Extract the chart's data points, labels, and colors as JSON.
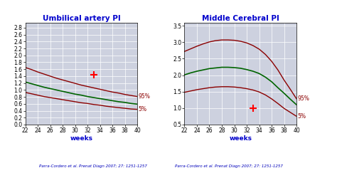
{
  "chart1": {
    "title": "Umbilical artery PI",
    "xlabel": "weeks",
    "citation": "Parra-Cordero et al. Prenat Diagn 2007; 27: 1251-1257",
    "ylim": [
      0.0,
      2.95
    ],
    "yticks": [
      0.0,
      0.2,
      0.4,
      0.6,
      0.8,
      1.0,
      1.2,
      1.4,
      1.6,
      1.8,
      2.0,
      2.2,
      2.4,
      2.6,
      2.8
    ],
    "xticks": [
      22,
      24,
      26,
      28,
      30,
      32,
      34,
      36,
      38,
      40
    ],
    "weeks": [
      22,
      23,
      24,
      25,
      26,
      27,
      28,
      29,
      30,
      31,
      32,
      33,
      34,
      35,
      36,
      37,
      38,
      39,
      40
    ],
    "p95": [
      1.65,
      1.59,
      1.52,
      1.46,
      1.4,
      1.34,
      1.29,
      1.24,
      1.19,
      1.14,
      1.1,
      1.06,
      1.02,
      0.98,
      0.94,
      0.91,
      0.87,
      0.84,
      0.81
    ],
    "p50": [
      1.23,
      1.18,
      1.13,
      1.08,
      1.04,
      1.0,
      0.96,
      0.92,
      0.88,
      0.85,
      0.81,
      0.78,
      0.75,
      0.72,
      0.69,
      0.66,
      0.64,
      0.61,
      0.59
    ],
    "p5": [
      0.93,
      0.89,
      0.85,
      0.81,
      0.78,
      0.75,
      0.72,
      0.69,
      0.66,
      0.63,
      0.61,
      0.58,
      0.56,
      0.53,
      0.51,
      0.49,
      0.47,
      0.45,
      0.44
    ],
    "label_95": "95%",
    "label_5": "5%",
    "cross_x": 33.0,
    "cross_y": 1.43,
    "cross_color": "#ff0000"
  },
  "chart2": {
    "title": "Middle Cerebral PI",
    "xlabel": "weeks",
    "citation": "Parra-Cordero et al. Prenat Diagn 2007; 27: 1251-1257",
    "ylim": [
      0.5,
      3.6
    ],
    "yticks": [
      0.5,
      1.0,
      1.5,
      2.0,
      2.5,
      3.0,
      3.5
    ],
    "xticks": [
      22,
      24,
      26,
      28,
      30,
      32,
      34,
      36,
      38,
      40
    ],
    "weeks": [
      22,
      23,
      24,
      25,
      26,
      27,
      28,
      29,
      30,
      31,
      32,
      33,
      34,
      35,
      36,
      37,
      38,
      39,
      40
    ],
    "p95": [
      2.72,
      2.8,
      2.88,
      2.95,
      3.01,
      3.05,
      3.07,
      3.07,
      3.06,
      3.03,
      2.98,
      2.9,
      2.79,
      2.63,
      2.42,
      2.16,
      1.85,
      1.57,
      1.28
    ],
    "p50": [
      2.01,
      2.07,
      2.12,
      2.16,
      2.2,
      2.22,
      2.24,
      2.24,
      2.23,
      2.21,
      2.17,
      2.12,
      2.05,
      1.94,
      1.8,
      1.62,
      1.45,
      1.27,
      1.1
    ],
    "p5": [
      1.48,
      1.52,
      1.56,
      1.59,
      1.62,
      1.64,
      1.65,
      1.65,
      1.64,
      1.62,
      1.59,
      1.55,
      1.49,
      1.4,
      1.28,
      1.14,
      0.99,
      0.87,
      0.75
    ],
    "label_95": "95%",
    "label_5": "5%",
    "cross_x": 33.0,
    "cross_y": 1.0,
    "cross_color": "#ff0000"
  },
  "line_color_outer": "#8b0000",
  "line_color_median": "#006400",
  "bg_color": "#cdd1df",
  "title_color": "#0000cc",
  "citation_color": "#0000bb",
  "label_color": "#8b0000"
}
